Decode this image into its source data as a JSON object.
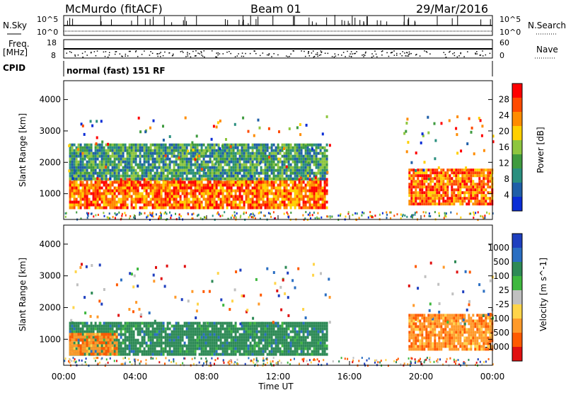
{
  "header": {
    "station": "McMurdo (fitACF)",
    "beam": "Beam 01",
    "date": "29/Mar/2016"
  },
  "strip_labels": {
    "nsky": "N.Sky",
    "nsearch": "N.Search",
    "freq": "Freq.",
    "freq_unit": "[MHz]",
    "nave": "Nave",
    "cpid": "CPID",
    "cpid_value": "normal (fast) 151 RF",
    "nsky_top": "10^5",
    "nsky_bottom": "10^0",
    "nsearch_top": "10^5",
    "nsearch_bottom": "10^0",
    "freq_top": "18",
    "freq_bottom": "8",
    "nave_top": "60",
    "nave_bottom": "0"
  },
  "chart_data": [
    {
      "type": "heatmap",
      "panel": "power",
      "ylabel": "Slant Range [km]",
      "colorbar_label": "Power [dB]",
      "colorbar_ticks": [
        "28",
        "24",
        "20",
        "16",
        "12",
        "8",
        "4"
      ],
      "colorbar_colors": [
        "#ff0000",
        "#ff4a00",
        "#ff8c00",
        "#ffd000",
        "#8ec63f",
        "#3f9b3f",
        "#2a8f7f",
        "#1f5fa8",
        "#0a2dd6"
      ],
      "y_ticks": [
        "4000",
        "3000",
        "2000",
        "1000"
      ],
      "ylim": [
        180,
        4600
      ],
      "xlim": [
        0,
        24
      ],
      "bands": [
        {
          "from_h": 0.3,
          "to_h": 14.7,
          "range_km": [
            550,
            1500
          ],
          "peak_db": 28
        },
        {
          "from_h": 0.3,
          "to_h": 14.7,
          "range_km": [
            1500,
            2600
          ],
          "peak_db": 12
        },
        {
          "from_h": 19.3,
          "to_h": 24.0,
          "range_km": [
            650,
            1800
          ],
          "peak_db": 28
        }
      ]
    },
    {
      "type": "heatmap",
      "panel": "velocity",
      "ylabel": "Slant Range [km]",
      "colorbar_label": "Velocity [m s^-1]",
      "colorbar_ticks": [
        "1000",
        "500",
        "100",
        "25",
        "-25",
        "-100",
        "-500",
        "-1000"
      ],
      "colorbar_colors": [
        "#1e3fbf",
        "#2a6ec2",
        "#2e8a56",
        "#3fb83f",
        "#c0c0c0",
        "#ffd54a",
        "#ff9a2a",
        "#ff5a00",
        "#e01010"
      ],
      "y_ticks": [
        "4000",
        "3000",
        "2000",
        "1000"
      ],
      "ylim": [
        180,
        4600
      ],
      "xlim": [
        0,
        24
      ],
      "bands": [
        {
          "from_h": 0.3,
          "to_h": 14.7,
          "range_km": [
            550,
            1550
          ],
          "velocity": 100
        },
        {
          "from_h": 0.3,
          "to_h": 3.0,
          "range_km": [
            550,
            1200
          ],
          "velocity": -500
        },
        {
          "from_h": 19.3,
          "to_h": 24.0,
          "range_km": [
            650,
            1800
          ],
          "velocity": -500
        }
      ]
    }
  ],
  "x_axis": {
    "label": "Time UT",
    "ticks": [
      "00:00",
      "04:00",
      "08:00",
      "12:00",
      "16:00",
      "20:00",
      "00:00"
    ]
  }
}
